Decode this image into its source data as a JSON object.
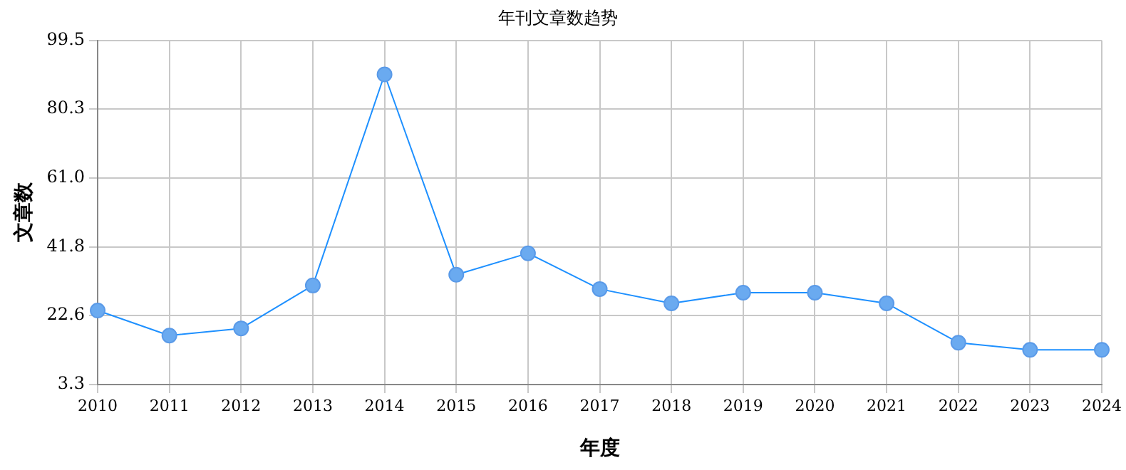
{
  "chart_data": {
    "type": "line",
    "title": "年刊文章数趋势",
    "xlabel": "年度",
    "ylabel": "文章数",
    "categories": [
      "2010",
      "2011",
      "2012",
      "2013",
      "2014",
      "2015",
      "2016",
      "2017",
      "2018",
      "2019",
      "2020",
      "2021",
      "2022",
      "2023",
      "2024"
    ],
    "series": [
      {
        "color": "#1e90ff",
        "values": [
          24,
          17,
          19,
          31,
          90,
          34,
          40,
          30,
          26,
          29,
          29,
          26,
          15,
          13,
          13
        ]
      }
    ],
    "ylim": [
      3.3,
      99.5
    ],
    "yticks": [
      3.3,
      22.6,
      41.8,
      {
        "value": 61,
        "label": "61.0"
      },
      {
        "value": 80.3,
        "label": "80.3"
      },
      99.5
    ],
    "grid": true,
    "legend": false,
    "marker": "circle",
    "line_style": "solid"
  }
}
